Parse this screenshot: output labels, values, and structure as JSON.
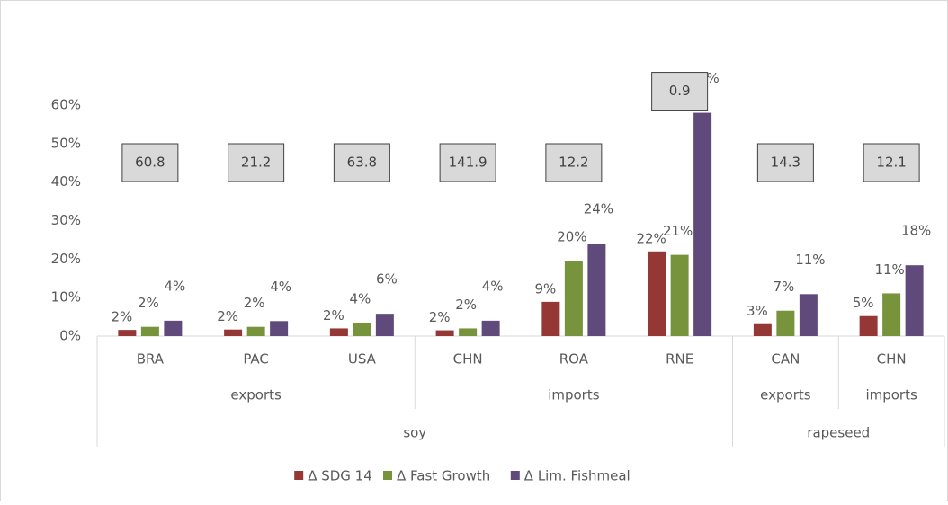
{
  "chart_data": {
    "type": "bar",
    "categories": [
      "BRA",
      "PAC",
      "USA",
      "CHN",
      "ROA",
      "RNE",
      "CAN",
      "CHN"
    ],
    "groups": [
      {
        "label": "exports",
        "span": 3
      },
      {
        "label": "imports",
        "span": 3
      },
      {
        "label": "exports",
        "span": 1
      },
      {
        "label": "imports",
        "span": 1
      }
    ],
    "supergroups": [
      {
        "label": "soy",
        "span": 6
      },
      {
        "label": "rapeseed",
        "span": 2
      }
    ],
    "box_labels": [
      "60.8",
      "21.2",
      "63.8",
      "141.9",
      "12.2",
      "0.9",
      "14.3",
      "12.1"
    ],
    "series": [
      {
        "name": "Δ SDG 14",
        "color": "#953735",
        "values": [
          1.6,
          1.7,
          2.0,
          1.5,
          8.9,
          22,
          3.1,
          5.2
        ],
        "value_labels": [
          "2%",
          "2%",
          "2%",
          "2%",
          "9%",
          "22%",
          "3%",
          "5%"
        ]
      },
      {
        "name": "Δ Fast Growth",
        "color": "#77933c",
        "values": [
          2.4,
          2.4,
          3.5,
          2.0,
          19.6,
          21.1,
          6.6,
          11.1
        ],
        "value_labels": [
          "2%",
          "2%",
          "4%",
          "2%",
          "20%",
          "21%",
          "7%",
          "11%"
        ]
      },
      {
        "name": "Δ Lim. Fishmeal",
        "color": "#604a7b",
        "values": [
          4.0,
          3.9,
          5.8,
          4.0,
          24,
          58,
          10.9,
          18.4
        ],
        "value_labels": [
          "4%",
          "4%",
          "6%",
          "4%",
          "24%",
          "58%",
          "11%",
          "18%"
        ]
      }
    ],
    "ylim": [
      0,
      60
    ],
    "yticks": [
      {
        "value": 0,
        "label": "0%"
      },
      {
        "value": 10,
        "label": "10%"
      },
      {
        "value": 20,
        "label": "20%"
      },
      {
        "value": 30,
        "label": "30%"
      },
      {
        "value": 40,
        "label": "40%"
      },
      {
        "value": 50,
        "label": "50%"
      },
      {
        "value": 60,
        "label": "60%"
      }
    ],
    "legend": "bottom"
  }
}
